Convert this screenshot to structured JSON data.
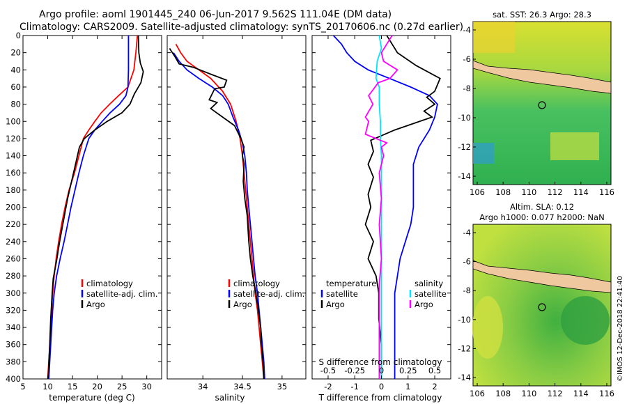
{
  "header": {
    "line1": "Argo profile: aoml 1901445_240 06-Jun-2017 9.562S 111.04E (DM data)",
    "line2": "Climatology: CARS2009. Satellite-adjusted climatology: synTS_20170606.nc (0.27d earlier)"
  },
  "colors": {
    "climatology": "#ff0000",
    "satellite": "#0000ff",
    "argo": "#000000",
    "sal_satellite": "#00e5ff",
    "sal_climatology": "#ff00ff",
    "land": "#f0c8a0"
  },
  "legend": {
    "climatology": "climatology",
    "satellite": "satellite-adj. clim.",
    "argo": "Argo"
  },
  "diff_legend": {
    "temperature": "temperature",
    "salinity": "salinity",
    "satellite": "satellite",
    "argo": "Argo"
  },
  "sst_map": {
    "title": "sat. SST: 26.3 Argo: 28.3",
    "yticks": [
      "-4",
      "-6",
      "-8",
      "-10",
      "-12",
      "-14"
    ],
    "xticks": [
      "106",
      "108",
      "110",
      "112",
      "114",
      "116"
    ]
  },
  "sla_map": {
    "title1": "Altim. SLA: 0.12",
    "title2": "Argo h1000: 0.077 h2000: NaN",
    "yticks": [
      "-4",
      "-6",
      "-8",
      "-10",
      "-12",
      "-14"
    ],
    "xticks": [
      "106",
      "108",
      "110",
      "112",
      "114",
      "116"
    ]
  },
  "watermark": "©IMOS 12-Dec-2018 22:41:40",
  "chart_data": [
    {
      "type": "line",
      "id": "temperature",
      "xlabel": "temperature (deg C)",
      "ylabel": "",
      "xlim": [
        5,
        33
      ],
      "ylim": [
        400,
        0
      ],
      "xticks": [
        5,
        10,
        15,
        20,
        25,
        30
      ],
      "yticks": [
        0,
        20,
        40,
        60,
        80,
        100,
        120,
        140,
        160,
        180,
        200,
        220,
        240,
        260,
        280,
        300,
        320,
        340,
        360,
        380,
        400
      ],
      "series": [
        {
          "name": "climatology",
          "color": "#ff0000",
          "points": [
            [
              28.1,
              0
            ],
            [
              27.8,
              20
            ],
            [
              27.4,
              40
            ],
            [
              26.2,
              60
            ],
            [
              24.3,
              70
            ],
            [
              22.5,
              80
            ],
            [
              20.8,
              90
            ],
            [
              19.5,
              100
            ],
            [
              18.3,
              110
            ],
            [
              17.2,
              120
            ],
            [
              16.3,
              140
            ],
            [
              15.4,
              160
            ],
            [
              14.3,
              180
            ],
            [
              13.5,
              200
            ],
            [
              12.8,
              220
            ],
            [
              12.2,
              240
            ],
            [
              11.7,
              260
            ],
            [
              11.3,
              280
            ],
            [
              11.0,
              300
            ],
            [
              10.8,
              320
            ],
            [
              10.6,
              340
            ],
            [
              10.4,
              360
            ],
            [
              10.2,
              380
            ],
            [
              10.0,
              400
            ]
          ]
        },
        {
          "name": "satellite-adj. clim.",
          "color": "#0000ff",
          "points": [
            [
              26.3,
              0
            ],
            [
              26.3,
              20
            ],
            [
              26.3,
              40
            ],
            [
              26.2,
              60
            ],
            [
              25.8,
              70
            ],
            [
              24.5,
              80
            ],
            [
              22.6,
              90
            ],
            [
              21.0,
              100
            ],
            [
              19.5,
              110
            ],
            [
              18.3,
              120
            ],
            [
              17.2,
              140
            ],
            [
              16.3,
              160
            ],
            [
              15.5,
              180
            ],
            [
              14.7,
              200
            ],
            [
              14.0,
              220
            ],
            [
              13.3,
              240
            ],
            [
              12.5,
              260
            ],
            [
              11.8,
              280
            ],
            [
              11.3,
              300
            ],
            [
              11.0,
              320
            ],
            [
              10.8,
              340
            ],
            [
              10.6,
              360
            ],
            [
              10.4,
              380
            ],
            [
              10.2,
              400
            ]
          ]
        },
        {
          "name": "Argo",
          "color": "#000000",
          "points": [
            [
              28.3,
              0
            ],
            [
              28.4,
              20
            ],
            [
              28.7,
              32
            ],
            [
              29.3,
              42
            ],
            [
              28.8,
              55
            ],
            [
              27.5,
              68
            ],
            [
              26.6,
              80
            ],
            [
              25.0,
              90
            ],
            [
              22.0,
              100
            ],
            [
              19.5,
              110
            ],
            [
              17.4,
              120
            ],
            [
              16.4,
              130
            ],
            [
              15.8,
              145
            ],
            [
              15.0,
              165
            ],
            [
              14.0,
              190
            ],
            [
              13.2,
              215
            ],
            [
              12.4,
              240
            ],
            [
              11.8,
              262
            ],
            [
              11.1,
              283
            ],
            [
              10.9,
              300
            ],
            [
              10.6,
              330
            ],
            [
              10.4,
              360
            ],
            [
              10.1,
              400
            ]
          ]
        }
      ]
    },
    {
      "type": "line",
      "id": "salinity",
      "xlabel": "salinity",
      "ylabel": "",
      "xlim": [
        33.55,
        35.3
      ],
      "ylim": [
        400,
        0
      ],
      "xticks": [
        34,
        34.5,
        35
      ],
      "series": [
        {
          "name": "climatology",
          "color": "#ff0000",
          "points": [
            [
              33.66,
              10
            ],
            [
              33.72,
              20
            ],
            [
              33.8,
              30
            ],
            [
              33.95,
              40
            ],
            [
              34.1,
              50
            ],
            [
              34.25,
              65
            ],
            [
              34.35,
              80
            ],
            [
              34.42,
              100
            ],
            [
              34.47,
              120
            ],
            [
              34.5,
              140
            ],
            [
              34.52,
              160
            ],
            [
              34.54,
              180
            ],
            [
              34.56,
              200
            ],
            [
              34.58,
              220
            ],
            [
              34.6,
              240
            ],
            [
              34.62,
              260
            ],
            [
              34.64,
              280
            ],
            [
              34.66,
              300
            ],
            [
              34.69,
              320
            ],
            [
              34.71,
              340
            ],
            [
              34.73,
              360
            ],
            [
              34.75,
              380
            ],
            [
              34.77,
              400
            ]
          ]
        },
        {
          "name": "satellite-adj. clim.",
          "color": "#0000ff",
          "points": [
            [
              33.63,
              20
            ],
            [
              33.7,
              30
            ],
            [
              33.8,
              40
            ],
            [
              33.95,
              50
            ],
            [
              34.12,
              60
            ],
            [
              34.25,
              70
            ],
            [
              34.32,
              80
            ],
            [
              34.38,
              95
            ],
            [
              34.45,
              110
            ],
            [
              34.5,
              125
            ],
            [
              34.53,
              140
            ],
            [
              34.55,
              160
            ],
            [
              34.56,
              180
            ],
            [
              34.58,
              200
            ],
            [
              34.6,
              220
            ],
            [
              34.62,
              240
            ],
            [
              34.64,
              260
            ],
            [
              34.66,
              280
            ],
            [
              34.69,
              300
            ],
            [
              34.71,
              320
            ],
            [
              34.73,
              340
            ],
            [
              34.75,
              360
            ],
            [
              34.77,
              380
            ],
            [
              34.78,
              400
            ]
          ]
        },
        {
          "name": "Argo",
          "color": "#000000",
          "points": [
            [
              33.58,
              15
            ],
            [
              33.65,
              25
            ],
            [
              33.7,
              33
            ],
            [
              33.88,
              37
            ],
            [
              34.1,
              45
            ],
            [
              34.3,
              52
            ],
            [
              34.27,
              60
            ],
            [
              34.15,
              62
            ],
            [
              34.08,
              75
            ],
            [
              34.18,
              78
            ],
            [
              34.1,
              85
            ],
            [
              34.25,
              95
            ],
            [
              34.4,
              105
            ],
            [
              34.48,
              120
            ],
            [
              34.52,
              130
            ],
            [
              34.5,
              140
            ],
            [
              34.52,
              150
            ],
            [
              34.51,
              170
            ],
            [
              34.53,
              190
            ],
            [
              34.56,
              210
            ],
            [
              34.58,
              240
            ],
            [
              34.6,
              260
            ],
            [
              34.63,
              280
            ],
            [
              34.67,
              300
            ],
            [
              34.7,
              320
            ],
            [
              34.73,
              340
            ],
            [
              34.74,
              360
            ],
            [
              34.76,
              380
            ],
            [
              34.77,
              400
            ]
          ]
        }
      ]
    },
    {
      "type": "line",
      "id": "difference",
      "xlabel": "T difference from climatology",
      "ylabel": "",
      "xlim": [
        -2.6,
        2.6
      ],
      "ylim": [
        400,
        0
      ],
      "xticks": [
        -2,
        -1,
        0,
        1,
        2
      ],
      "top_axis": {
        "label": "S difference from climatology",
        "xlim": [
          -0.65,
          0.65
        ],
        "ticks": [
          "-0.5",
          "-0.25",
          "0",
          "0.25",
          "0.5"
        ]
      },
      "series": [
        {
          "name": "temperature satellite",
          "color": "#0000ff",
          "points": [
            [
              -1.8,
              0
            ],
            [
              -1.5,
              10
            ],
            [
              -1.3,
              20
            ],
            [
              -1.0,
              30
            ],
            [
              -0.5,
              40
            ],
            [
              0.3,
              50
            ],
            [
              1.1,
              60
            ],
            [
              1.8,
              70
            ],
            [
              2.1,
              80
            ],
            [
              2.0,
              95
            ],
            [
              1.8,
              110
            ],
            [
              1.4,
              130
            ],
            [
              1.2,
              150
            ],
            [
              1.2,
              180
            ],
            [
              1.2,
              200
            ],
            [
              1.1,
              220
            ],
            [
              0.9,
              240
            ],
            [
              0.7,
              260
            ],
            [
              0.6,
              280
            ],
            [
              0.5,
              300
            ],
            [
              0.5,
              340
            ],
            [
              0.5,
              380
            ],
            [
              0.5,
              400
            ]
          ]
        },
        {
          "name": "temperature Argo",
          "color": "#000000",
          "points": [
            [
              0.2,
              0
            ],
            [
              0.6,
              20
            ],
            [
              1.3,
              35
            ],
            [
              2.2,
              50
            ],
            [
              2.0,
              65
            ],
            [
              1.7,
              72
            ],
            [
              2.0,
              80
            ],
            [
              1.6,
              88
            ],
            [
              1.9,
              95
            ],
            [
              0.5,
              110
            ],
            [
              -0.4,
              122
            ],
            [
              -0.3,
              135
            ],
            [
              -0.5,
              150
            ],
            [
              -0.3,
              165
            ],
            [
              -0.5,
              185
            ],
            [
              -0.4,
              200
            ],
            [
              -0.6,
              220
            ],
            [
              -0.3,
              240
            ],
            [
              -0.5,
              260
            ],
            [
              -0.2,
              280
            ],
            [
              -0.1,
              300
            ],
            [
              -0.1,
              330
            ],
            [
              0.0,
              360
            ],
            [
              0.0,
              380
            ],
            [
              0.0,
              400
            ]
          ]
        },
        {
          "name": "salinity satellite",
          "color": "#00e5ff",
          "points": [
            [
              -0.02,
              0
            ],
            [
              0.0,
              15
            ],
            [
              -0.04,
              30
            ],
            [
              -0.05,
              50
            ],
            [
              -0.02,
              60
            ],
            [
              -0.02,
              80
            ],
            [
              -0.01,
              100
            ],
            [
              -0.01,
              120
            ],
            [
              0.0,
              140
            ],
            [
              0.0,
              160
            ],
            [
              0.0,
              200
            ],
            [
              0.0,
              240
            ],
            [
              0.0,
              300
            ],
            [
              0.0,
              360
            ],
            [
              0.0,
              400
            ]
          ]
        },
        {
          "name": "salinity Argo",
          "color": "#ff00ff",
          "points": [
            [
              0.1,
              0
            ],
            [
              0.05,
              10
            ],
            [
              0.0,
              20
            ],
            [
              0.02,
              30
            ],
            [
              0.15,
              40
            ],
            [
              0.08,
              50
            ],
            [
              -0.03,
              55
            ],
            [
              -0.12,
              70
            ],
            [
              -0.08,
              80
            ],
            [
              -0.15,
              95
            ],
            [
              -0.12,
              100
            ],
            [
              -0.15,
              115
            ],
            [
              0.05,
              125
            ],
            [
              0.0,
              130
            ],
            [
              0.02,
              140
            ],
            [
              -0.02,
              160
            ],
            [
              0.0,
              190
            ],
            [
              -0.02,
              220
            ],
            [
              0.0,
              260
            ],
            [
              -0.02,
              290
            ],
            [
              -0.02,
              320
            ],
            [
              -0.02,
              360
            ],
            [
              -0.02,
              400
            ]
          ]
        }
      ]
    }
  ]
}
